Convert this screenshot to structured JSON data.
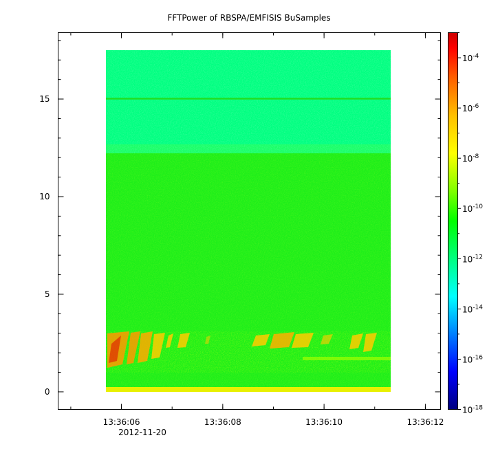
{
  "chart_data": {
    "type": "heatmap",
    "title": "FFTPower of RBSPA/EMFISIS  BuSamples",
    "xlabel": "",
    "ylabel": "",
    "x_date": "2012-11-20",
    "x_ticks": [
      "13:36:06",
      "13:36:08",
      "13:36:10",
      "13:36:12"
    ],
    "x_range": [
      "13:36:04.75",
      "13:36:12.3"
    ],
    "data_x_range": [
      "13:36:05.4",
      "13:36:11.3"
    ],
    "y_ticks": [
      0,
      5,
      10,
      15
    ],
    "y_range": [
      -0.9,
      18.4
    ],
    "data_y_range": [
      0,
      17.5
    ],
    "colorbar": {
      "scale": "log",
      "range": [
        1e-18,
        0.001
      ],
      "ticks": [
        {
          "base": "10",
          "exp": "-4"
        },
        {
          "base": "10",
          "exp": "-6"
        },
        {
          "base": "10",
          "exp": "-8"
        },
        {
          "base": "10",
          "exp": "-10"
        },
        {
          "base": "10",
          "exp": "-12"
        },
        {
          "base": "10",
          "exp": "-14"
        },
        {
          "base": "10",
          "exp": "-16"
        },
        {
          "base": "10",
          "exp": "-18"
        }
      ],
      "colormap": [
        "#00007f",
        "#0000ff",
        "#007fff",
        "#00ffff",
        "#00ff80",
        "#00ff00",
        "#80ff00",
        "#ffff00",
        "#ff8000",
        "#ff0000",
        "#cc0000"
      ]
    },
    "grid": false
  }
}
